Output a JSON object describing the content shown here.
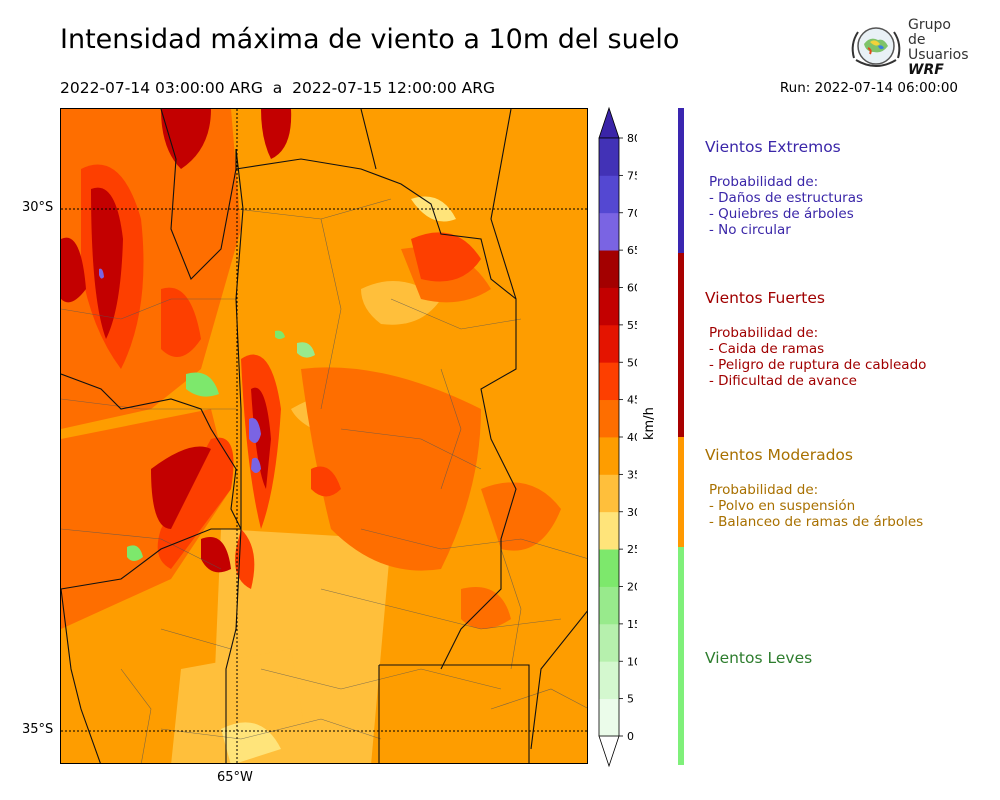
{
  "header": {
    "title": "Intensidad máxima de viento a 10m del suelo",
    "period": "2022-07-14 03:00:00 ARG  a  2022-07-15 12:00:00 ARG",
    "run": "Run: 2022-07-14 06:00:00"
  },
  "logo": {
    "line1": "Grupo de",
    "line2": "Usuarios",
    "line3": "WRF"
  },
  "map": {
    "lat_labels": [
      "30°S",
      "35°S"
    ],
    "lon_labels": [
      "65°W"
    ]
  },
  "colorbar": {
    "unit": "km/h",
    "ticks": [
      "0",
      "5",
      "10",
      "15",
      "20",
      "25",
      "30",
      "35",
      "40",
      "45",
      "50",
      "55",
      "60",
      "65",
      "70",
      "75",
      "80"
    ],
    "colors": [
      "#ebfcea",
      "#d4f8cf",
      "#b6f0ad",
      "#98ea8c",
      "#7de86c",
      "#ffe47a",
      "#ffbf3b",
      "#fe9d00",
      "#fe6e00",
      "#fd3f00",
      "#e41400",
      "#c30000",
      "#a30000",
      "#7a64e3",
      "#5448d2",
      "#4232b6"
    ],
    "under_color": "#ffffff",
    "over_color": "#3a24a8"
  },
  "categories": [
    {
      "title": "Vientos Extremos",
      "color": "#3a26b0",
      "text_color": "#3a26a8",
      "desc": [
        "Probabilidad de:",
        "- Daños de estructuras",
        "- Quiebres de árboles",
        "- No circular"
      ]
    },
    {
      "title": "Vientos Fuertes",
      "color": "#a80000",
      "text_color": "#a00000",
      "desc": [
        "Probabilidad de:",
        "- Caida de ramas",
        "- Peligro de ruptura de cableado",
        "- Dificultad de avance"
      ]
    },
    {
      "title": "Vientos Moderados",
      "color": "#ff9900",
      "text_color": "#a87000",
      "desc": [
        "Probabilidad de:",
        "- Polvo en suspensión",
        "- Balanceo de ramas de árboles"
      ]
    },
    {
      "title": "Vientos Leves",
      "color": "#7ff07a",
      "text_color": "#2e7d2e",
      "desc": []
    }
  ]
}
